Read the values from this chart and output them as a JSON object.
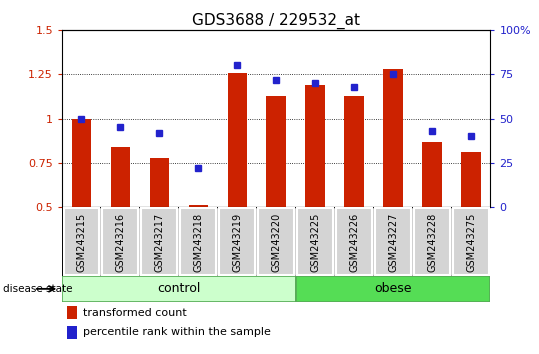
{
  "title": "GDS3688 / 229532_at",
  "samples": [
    "GSM243215",
    "GSM243216",
    "GSM243217",
    "GSM243218",
    "GSM243219",
    "GSM243220",
    "GSM243225",
    "GSM243226",
    "GSM243227",
    "GSM243228",
    "GSM243275"
  ],
  "transformed_count": [
    1.0,
    0.84,
    0.78,
    0.51,
    1.26,
    1.13,
    1.19,
    1.13,
    1.28,
    0.87,
    0.81
  ],
  "percentile_rank": [
    50,
    45,
    42,
    22,
    80,
    72,
    70,
    68,
    75,
    43,
    40
  ],
  "ylim_left": [
    0.5,
    1.5
  ],
  "ylim_right": [
    0,
    100
  ],
  "yticks_left": [
    0.5,
    0.75,
    1.0,
    1.25,
    1.5
  ],
  "yticks_right": [
    0,
    25,
    50,
    75,
    100
  ],
  "ytick_labels_right": [
    "0",
    "25",
    "50",
    "75",
    "100%"
  ],
  "bar_color": "#cc2200",
  "dot_color": "#2222cc",
  "grid_lines": [
    0.75,
    1.0,
    1.25
  ],
  "control_count": 6,
  "obese_count": 5,
  "control_label": "control",
  "obese_label": "obese",
  "control_color": "#ccffcc",
  "obese_color": "#55dd55",
  "disease_state_label": "disease state",
  "legend_bar_label": "transformed count",
  "legend_dot_label": "percentile rank within the sample",
  "title_fontsize": 11,
  "tick_fontsize": 8,
  "sample_fontsize": 7,
  "legend_fontsize": 8,
  "group_fontsize": 9
}
